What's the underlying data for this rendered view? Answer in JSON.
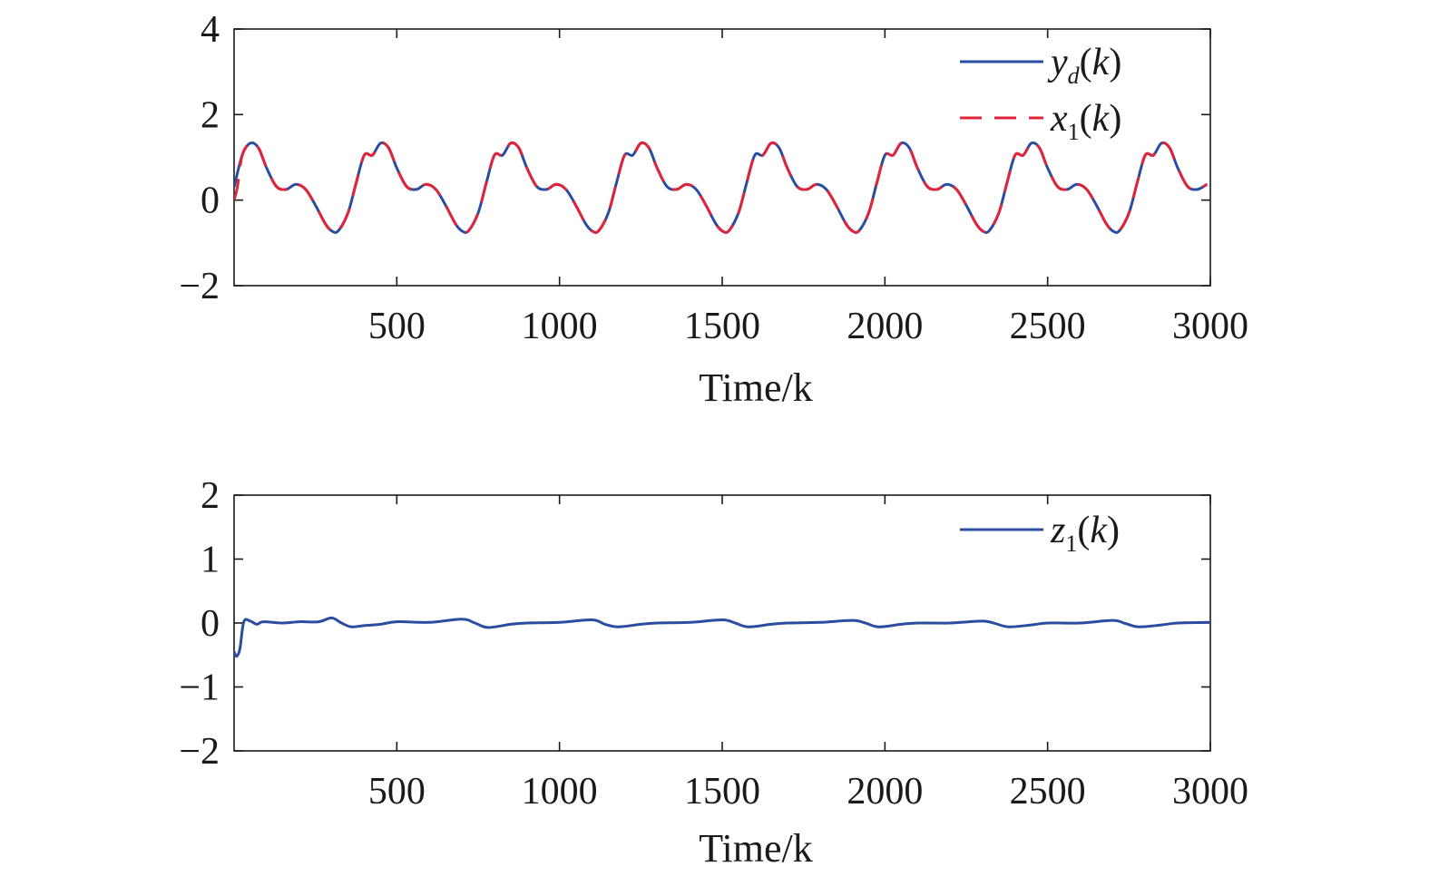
{
  "chart_data": [
    {
      "type": "line",
      "title": "",
      "xlabel": "Time/k",
      "ylabel": "",
      "xlim": [
        0,
        3000
      ],
      "ylim": [
        -2,
        4
      ],
      "xticks": [
        500,
        1000,
        1500,
        2000,
        2500,
        3000
      ],
      "xtick_labels": [
        "500",
        "1000",
        "1500",
        "2000",
        "2500",
        "3000"
      ],
      "yticks": [
        -2,
        0,
        2,
        4
      ],
      "ytick_labels": [
        "−2",
        "0",
        "2",
        "4"
      ],
      "grid": false,
      "legend_placement": "top-right",
      "period": 400,
      "series": [
        {
          "name": "y_d(k)",
          "legend_base": "y",
          "legend_sub": "d",
          "legend_arg": "(k)",
          "color": "#2b4da0",
          "style": "solid",
          "one_period": [
            [
              0,
              0.3
            ],
            [
              25,
              1.05
            ],
            [
              50,
              1.33
            ],
            [
              75,
              1.22
            ],
            [
              100,
              0.75
            ],
            [
              130,
              0.32
            ],
            [
              160,
              0.25
            ],
            [
              190,
              0.37
            ],
            [
              220,
              0.25
            ],
            [
              250,
              -0.12
            ],
            [
              280,
              -0.55
            ],
            [
              300,
              -0.72
            ],
            [
              320,
              -0.72
            ],
            [
              350,
              -0.3
            ],
            [
              375,
              0.4
            ],
            [
              400,
              1.05
            ]
          ]
        },
        {
          "name": "x_1(k)",
          "legend_base": "x",
          "legend_sub": "1",
          "legend_arg": "(k)",
          "color": "#e0243a",
          "style": "dashed",
          "start_points": [
            [
              0,
              0.0
            ],
            [
              10,
              0.3
            ],
            [
              25,
              1.05
            ]
          ]
        }
      ]
    },
    {
      "type": "line",
      "title": "",
      "xlabel": "Time/k",
      "ylabel": "",
      "xlim": [
        0,
        3000
      ],
      "ylim": [
        -2,
        2
      ],
      "xticks": [
        500,
        1000,
        1500,
        2000,
        2500,
        3000
      ],
      "xtick_labels": [
        "500",
        "1000",
        "1500",
        "2000",
        "2500",
        "3000"
      ],
      "yticks": [
        -2,
        -1,
        0,
        1,
        2
      ],
      "ytick_labels": [
        "−2",
        "−1",
        "0",
        "1",
        "2"
      ],
      "grid": false,
      "legend_placement": "top-right",
      "series": [
        {
          "name": "z_1(k)",
          "legend_base": "z",
          "legend_sub": "1",
          "legend_arg": "(k)",
          "color": "#2b4da0",
          "style": "solid",
          "points": [
            [
              0,
              -0.45
            ],
            [
              8,
              -0.52
            ],
            [
              18,
              -0.4
            ],
            [
              30,
              0.02
            ],
            [
              50,
              0.03
            ],
            [
              70,
              -0.02
            ],
            [
              90,
              0.02
            ],
            [
              150,
              0.0
            ],
            [
              200,
              0.02
            ],
            [
              260,
              0.02
            ],
            [
              300,
              0.08
            ],
            [
              330,
              0.0
            ],
            [
              360,
              -0.06
            ],
            [
              400,
              -0.04
            ],
            [
              450,
              -0.02
            ],
            [
              500,
              0.02
            ],
            [
              600,
              0.01
            ],
            [
              700,
              0.06
            ],
            [
              740,
              0.0
            ],
            [
              780,
              -0.07
            ],
            [
              850,
              -0.02
            ],
            [
              900,
              0.0
            ],
            [
              1000,
              0.01
            ],
            [
              1100,
              0.05
            ],
            [
              1140,
              -0.02
            ],
            [
              1180,
              -0.06
            ],
            [
              1250,
              -0.02
            ],
            [
              1300,
              0.0
            ],
            [
              1400,
              0.01
            ],
            [
              1500,
              0.05
            ],
            [
              1540,
              0.0
            ],
            [
              1580,
              -0.06
            ],
            [
              1650,
              -0.02
            ],
            [
              1700,
              0.0
            ],
            [
              1800,
              0.01
            ],
            [
              1900,
              0.04
            ],
            [
              1940,
              0.0
            ],
            [
              1980,
              -0.06
            ],
            [
              2050,
              -0.02
            ],
            [
              2100,
              0.0
            ],
            [
              2200,
              0.0
            ],
            [
              2300,
              0.03
            ],
            [
              2340,
              -0.01
            ],
            [
              2380,
              -0.06
            ],
            [
              2450,
              -0.03
            ],
            [
              2500,
              0.0
            ],
            [
              2600,
              0.0
            ],
            [
              2700,
              0.04
            ],
            [
              2740,
              -0.01
            ],
            [
              2780,
              -0.06
            ],
            [
              2850,
              -0.03
            ],
            [
              2900,
              0.0
            ],
            [
              3000,
              0.01
            ]
          ]
        }
      ]
    }
  ]
}
